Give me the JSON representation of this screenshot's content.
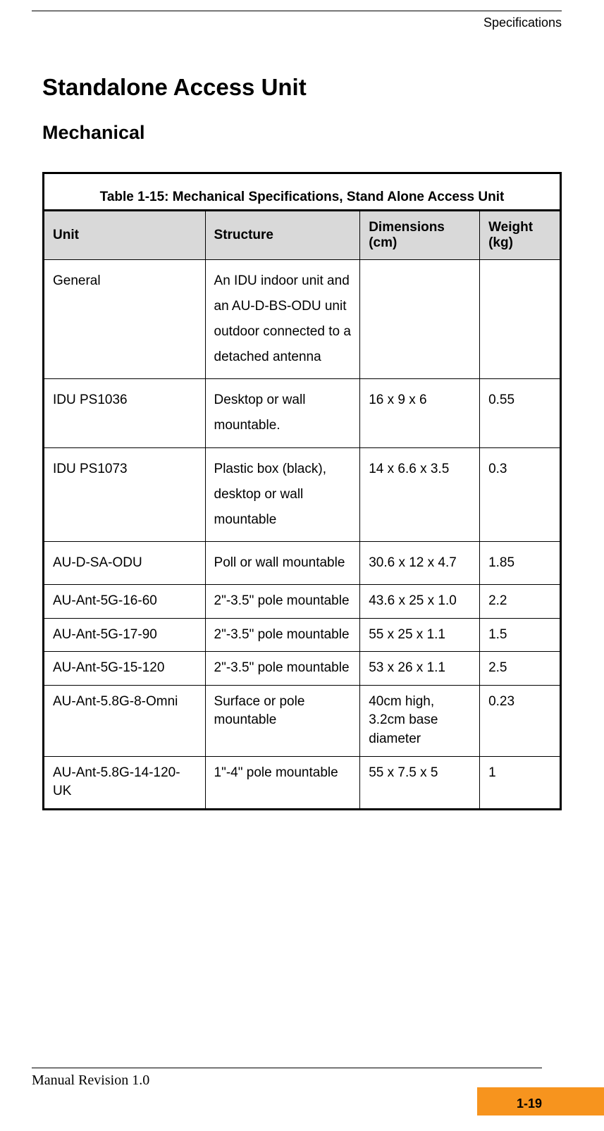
{
  "header": {
    "section": "Specifications"
  },
  "headings": {
    "h1": "Standalone Access Unit",
    "h2": "Mechanical"
  },
  "table": {
    "caption": "Table 1-15: Mechanical Specifications, Stand Alone Access Unit",
    "columns": [
      "Unit",
      "Structure",
      "Dimensions (cm)",
      "Weight (kg)"
    ],
    "rows": [
      {
        "unit": "General",
        "structure": "An IDU indoor unit and an AU-D-BS-ODU unit outdoor connected to a detached antenna",
        "dimensions": "",
        "weight": "",
        "short": false
      },
      {
        "unit": "IDU PS1036",
        "structure": "Desktop or wall mountable.",
        "dimensions": "16 x 9 x 6",
        "weight": "0.55",
        "short": false
      },
      {
        "unit": "IDU PS1073",
        "structure": "Plastic box (black), desktop or wall mountable",
        "dimensions": "14 x 6.6 x 3.5",
        "weight": "0.3",
        "short": false
      },
      {
        "unit": "AU-D-SA-ODU",
        "structure": "Poll or wall mountable",
        "dimensions": "30.6 x 12 x 4.7",
        "weight": "1.85",
        "short": false
      },
      {
        "unit": "AU-Ant-5G-16-60",
        "structure": "2\"-3.5\" pole mountable",
        "dimensions": "43.6 x 25 x 1.0",
        "weight": "2.2",
        "short": true
      },
      {
        "unit": "AU-Ant-5G-17-90",
        "structure": "2\"-3.5\" pole mountable",
        "dimensions": "55 x 25 x 1.1",
        "weight": "1.5",
        "short": true
      },
      {
        "unit": "AU-Ant-5G-15-120",
        "structure": "2\"-3.5\" pole mountable",
        "dimensions": "53 x 26 x 1.1",
        "weight": "2.5",
        "short": true
      },
      {
        "unit": "AU-Ant-5.8G-8-Omni",
        "structure": "Surface or pole mountable",
        "dimensions": "40cm high, 3.2cm base diameter",
        "weight": "0.23",
        "short": true
      },
      {
        "unit": "AU-Ant-5.8G-14-120-UK",
        "structure": "1\"-4\" pole mountable",
        "dimensions": "55 x 7.5 x 5",
        "weight": "1",
        "short": true
      }
    ]
  },
  "footer": {
    "revision": "Manual Revision 1.0",
    "page": "1-19"
  },
  "colors": {
    "header_bg": "#d9d9d9",
    "accent": "#f7941e",
    "text": "#000000",
    "bg": "#ffffff"
  }
}
